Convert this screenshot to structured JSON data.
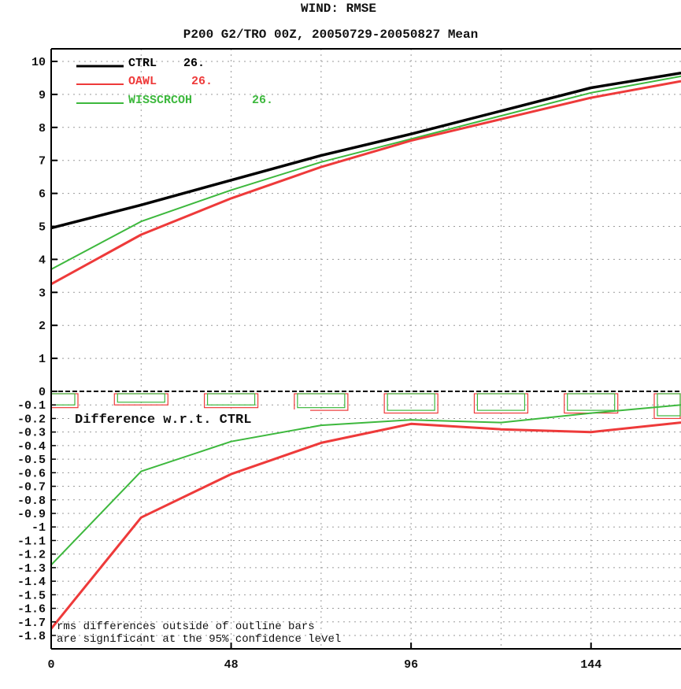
{
  "chart_data": {
    "type": "line",
    "title": "WIND: RMSE",
    "subtitle": "P200 G2/TRO 00Z, 20050729-20050827 Mean",
    "x_ticks": [
      0,
      48,
      96,
      144
    ],
    "xlim": [
      0,
      168
    ],
    "top_panel": {
      "ylim": [
        0,
        10
      ],
      "y_ticks": [
        "0",
        "1",
        "2",
        "3",
        "4",
        "5",
        "6",
        "7",
        "8",
        "9",
        "10"
      ],
      "series": [
        {
          "name": "CTRL",
          "legend_value": "26.",
          "color": "#000000",
          "x": [
            0,
            24,
            48,
            72,
            96,
            120,
            144,
            168
          ],
          "values": [
            4.95,
            5.65,
            6.4,
            7.15,
            7.8,
            8.5,
            9.2,
            9.65
          ]
        },
        {
          "name": "OAWL",
          "legend_value": "26.",
          "color": "#ee3a3a",
          "x": [
            0,
            24,
            48,
            72,
            96,
            120,
            144,
            168
          ],
          "values": [
            3.25,
            4.75,
            5.85,
            6.8,
            7.6,
            8.25,
            8.9,
            9.4
          ]
        },
        {
          "name": "WISSCRCOH",
          "legend_value": "26.",
          "color": "#3db83d",
          "x": [
            0,
            24,
            48,
            72,
            96,
            120,
            144,
            168
          ],
          "values": [
            3.7,
            5.15,
            6.1,
            6.95,
            7.65,
            8.35,
            9.05,
            9.55
          ]
        }
      ]
    },
    "bottom_panel": {
      "label": "Difference w.r.t. CTRL",
      "ylim": [
        -1.85,
        0
      ],
      "y_ticks": [
        "0",
        "-0.1",
        "-0.2",
        "-0.3",
        "-0.4",
        "-0.5",
        "-0.6",
        "-0.7",
        "-0.8",
        "-0.9",
        "-1",
        "-1.1",
        "-1.2",
        "-1.3",
        "-1.4",
        "-1.5",
        "-1.6",
        "-1.7",
        "-1.8"
      ],
      "series": [
        {
          "name": "OAWL",
          "color": "#ee3a3a",
          "x": [
            0,
            24,
            48,
            72,
            96,
            120,
            144,
            168
          ],
          "values": [
            -1.75,
            -0.93,
            -0.61,
            -0.38,
            -0.24,
            -0.28,
            -0.3,
            -0.23
          ]
        },
        {
          "name": "WISSCRCOH",
          "color": "#3db83d",
          "x": [
            0,
            24,
            48,
            72,
            96,
            120,
            144,
            168
          ],
          "values": [
            -1.28,
            -0.59,
            -0.37,
            -0.25,
            -0.21,
            -0.23,
            -0.16,
            -0.1
          ]
        }
      ],
      "significance_bars": {
        "x": [
          0,
          24,
          48,
          72,
          96,
          120,
          144,
          168
        ],
        "red_depth": [
          0.12,
          0.1,
          0.12,
          0.14,
          0.16,
          0.16,
          0.16,
          0.2
        ],
        "green_depth": [
          0.1,
          0.08,
          0.1,
          0.12,
          0.14,
          0.14,
          0.14,
          0.18
        ]
      }
    },
    "note_lines": [
      "rms differences outside of outline bars",
      "are significant at the 95% confidence level"
    ],
    "grid": true,
    "legend_position": "top-left"
  }
}
